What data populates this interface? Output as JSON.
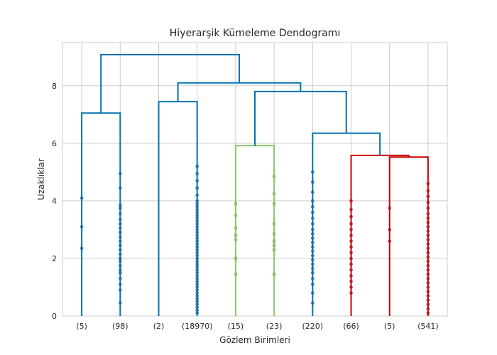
{
  "chart_data": {
    "type": "dendrogram",
    "title": "Hiyerarşik Kümeleme Dendogramı",
    "xlabel": "Gözlem Birimleri",
    "ylabel": "Uzaklıklar",
    "ylim": [
      0,
      9.5
    ],
    "yticks": [
      0,
      2,
      4,
      6,
      8
    ],
    "grid": true,
    "leaves": [
      "(5)",
      "(98)",
      "(2)",
      "(18970)",
      "(15)",
      "(23)",
      "(220)",
      "(66)",
      "(5)",
      "(541)"
    ],
    "links": [
      {
        "left": 0,
        "right": 1,
        "left_height": 0,
        "right_height": 0,
        "height": 7.05,
        "color": "#0072B2"
      },
      {
        "left": 2,
        "right": 3,
        "left_height": 0,
        "right_height": 0,
        "height": 7.45,
        "color": "#0072B2"
      },
      {
        "left": 4,
        "right": 5,
        "left_height": 0,
        "right_height": 0,
        "height": 5.92,
        "color": "#8CC665"
      },
      {
        "left": 8,
        "right": 9,
        "left_height": 0,
        "right_height": 0,
        "height": 5.52,
        "color": "#CC0000"
      },
      {
        "left": 7,
        "right": 8.5,
        "left_height": 0,
        "right_height": 5.52,
        "height": 5.58,
        "color": "#CC0000"
      },
      {
        "left": 6,
        "right": 7.75,
        "left_height": 0,
        "right_height": 5.58,
        "height": 6.35,
        "color": "#0072B2"
      },
      {
        "left": 4.5,
        "right": 6.875,
        "left_height": 5.92,
        "right_height": 6.35,
        "height": 7.8,
        "color": "#0072B2"
      },
      {
        "left": 2.5,
        "right": 5.6875,
        "left_height": 7.45,
        "right_height": 7.8,
        "height": 8.1,
        "color": "#0072B2"
      },
      {
        "left": 0.5,
        "right": 4.09375,
        "left_height": 7.05,
        "right_height": 8.1,
        "height": 9.08,
        "color": "#0072B2"
      }
    ],
    "points": [
      {
        "leaf": 0,
        "color": "#0072B2",
        "values": [
          2.35,
          3.1,
          4.1
        ]
      },
      {
        "leaf": 1,
        "color": "#0072B2",
        "values": [
          0.45,
          0.9,
          1.1,
          1.3,
          1.5,
          1.6,
          1.75,
          1.9,
          2.0,
          2.15,
          2.3,
          2.45,
          2.6,
          2.75,
          2.9,
          3.05,
          3.2,
          3.35,
          3.55,
          3.75,
          3.85,
          4.45,
          4.95
        ]
      },
      {
        "leaf": 3,
        "color": "#0072B2",
        "values": [
          0.1,
          0.2,
          0.3,
          0.4,
          0.5,
          0.6,
          0.7,
          0.8,
          0.9,
          1.0,
          1.1,
          1.2,
          1.3,
          1.4,
          1.5,
          1.6,
          1.7,
          1.8,
          1.9,
          2.0,
          2.1,
          2.2,
          2.3,
          2.4,
          2.5,
          2.6,
          2.7,
          2.8,
          2.9,
          3.0,
          3.1,
          3.2,
          3.3,
          3.4,
          3.5,
          3.6,
          3.7,
          3.8,
          3.9,
          4.0,
          4.2,
          4.45,
          4.7,
          4.95,
          5.2
        ]
      },
      {
        "leaf": 4,
        "color": "#8CC665",
        "values": [
          1.45,
          2.0,
          2.65,
          2.8,
          3.05,
          3.5,
          3.9
        ]
      },
      {
        "leaf": 5,
        "color": "#8CC665",
        "values": [
          1.45,
          2.3,
          2.45,
          2.6,
          2.85,
          3.2,
          3.9,
          4.25,
          4.85
        ]
      },
      {
        "leaf": 6,
        "color": "#0072B2",
        "values": [
          0.45,
          0.8,
          1.1,
          1.3,
          1.5,
          1.65,
          1.8,
          1.95,
          2.1,
          2.25,
          2.4,
          2.55,
          2.7,
          2.85,
          3.0,
          3.2,
          3.4,
          3.6,
          3.8,
          4.0,
          4.3,
          4.65,
          5.0
        ]
      },
      {
        "leaf": 7,
        "color": "#CC0000",
        "values": [
          0.8,
          1.0,
          1.2,
          1.4,
          1.6,
          1.8,
          2.0,
          2.2,
          2.4,
          2.6,
          2.8,
          3.0,
          3.2,
          3.45,
          3.7,
          4.0
        ]
      },
      {
        "leaf": 8,
        "color": "#CC0000",
        "values": [
          2.6,
          3.0,
          3.75
        ]
      },
      {
        "leaf": 9,
        "color": "#CC0000",
        "values": [
          0.1,
          0.25,
          0.4,
          0.55,
          0.7,
          0.85,
          1.0,
          1.15,
          1.3,
          1.45,
          1.6,
          1.75,
          1.9,
          2.05,
          2.2,
          2.35,
          2.5,
          2.65,
          2.8,
          2.95,
          3.1,
          3.25,
          3.4,
          3.55,
          3.75,
          3.95,
          4.15,
          4.35,
          4.6
        ]
      }
    ]
  }
}
